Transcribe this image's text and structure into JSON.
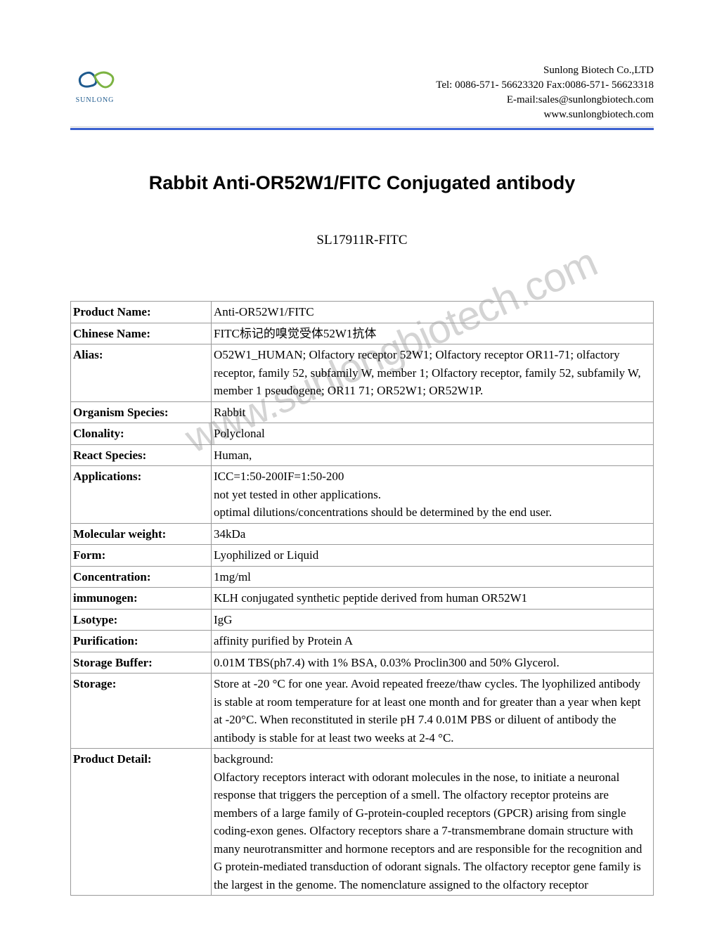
{
  "company": {
    "name": "Sunlong Biotech Co.,LTD",
    "tel": "Tel: 0086-571- 56623320 Fax:0086-571- 56623318",
    "email": "E-mail:sales@sunlongbiotech.com",
    "website": "www.sunlongbiotech.com",
    "logoText": "SUNLONG"
  },
  "title": "Rabbit Anti-OR52W1/FITC Conjugated antibody",
  "productCode": "SL17911R-FITC",
  "watermark": "www.sunlongbiotech.com",
  "table": {
    "rows": [
      {
        "label": "Product Name:",
        "value": "Anti-OR52W1/FITC"
      },
      {
        "label": "Chinese Name:",
        "value": "FITC标记的嗅觉受体52W1抗体"
      },
      {
        "label": "Alias:",
        "value": "O52W1_HUMAN; Olfactory receptor 52W1; Olfactory receptor OR11-71; olfactory receptor, family 52, subfamily W, member 1; Olfactory receptor, family 52, subfamily W, member 1 pseudogene; OR11 71; OR52W1; OR52W1P."
      },
      {
        "label": "Organism Species:",
        "value": "Rabbit"
      },
      {
        "label": "Clonality:",
        "value": "Polyclonal"
      },
      {
        "label": "React Species:",
        "value": "Human,"
      },
      {
        "label": "Applications:",
        "value": "ICC=1:50-200IF=1:50-200\nnot yet tested in other applications.\noptimal dilutions/concentrations should be determined by the end user."
      },
      {
        "label": "Molecular weight:",
        "value": "34kDa"
      },
      {
        "label": "Form:",
        "value": "Lyophilized or Liquid"
      },
      {
        "label": "Concentration:",
        "value": "1mg/ml"
      },
      {
        "label": "immunogen:",
        "value": "KLH conjugated synthetic peptide derived from human OR52W1"
      },
      {
        "label": "Lsotype:",
        "value": "IgG"
      },
      {
        "label": "Purification:",
        "value": "affinity purified by Protein A"
      },
      {
        "label": "Storage Buffer:",
        "value": "0.01M TBS(ph7.4) with 1% BSA, 0.03% Proclin300 and 50% Glycerol."
      },
      {
        "label": "Storage:",
        "value": "Store at -20 °C for one year. Avoid repeated freeze/thaw cycles. The lyophilized antibody is stable at room temperature for at least one month and for greater than a year when kept at -20°C. When reconstituted in sterile pH 7.4 0.01M PBS or diluent of antibody the antibody is stable for at least two weeks at 2-4 °C."
      },
      {
        "label": "Product Detail:",
        "value": "background:\nOlfactory receptors interact with odorant molecules in the nose, to initiate a neuronal response that triggers the perception of a smell. The olfactory receptor proteins are members of a large family of G-protein-coupled receptors (GPCR) arising from single coding-exon genes. Olfactory receptors share a 7-transmembrane domain structure with many neurotransmitter and hormone receptors and are responsible for the recognition and G protein-mediated transduction of odorant signals. The olfactory receptor gene family is the largest in the genome. The nomenclature assigned to the olfactory receptor"
      }
    ]
  },
  "colors": {
    "logoBlue": "#1e5a8e",
    "logoGreen": "#7cb342",
    "dividerBlue": "#3a5fcd",
    "watermarkGray": "#d4d4d4",
    "borderGray": "#999999"
  }
}
